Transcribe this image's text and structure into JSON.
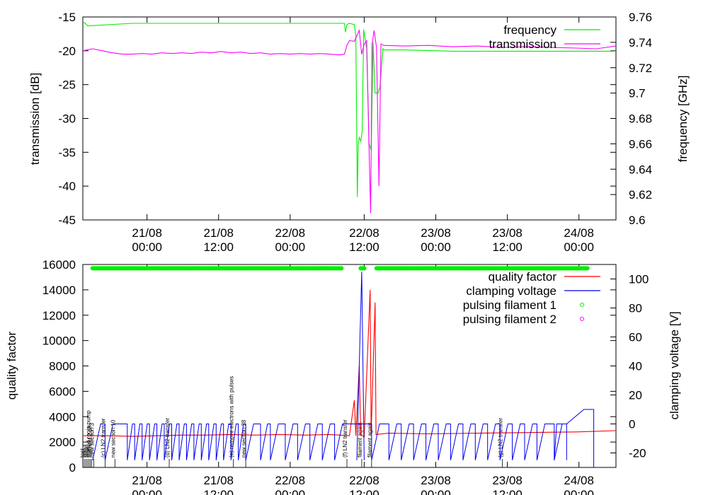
{
  "chart_data": [
    {
      "type": "line",
      "title": "",
      "ylabel": "transmission [dB]",
      "y2label": "frequency [GHz]",
      "ylim": [
        -45,
        -15
      ],
      "y2lim": [
        9.6,
        9.76
      ],
      "yticks": [
        "-15",
        "-20",
        "-25",
        "-30",
        "-35",
        "-40",
        "-45"
      ],
      "y2ticks": [
        "9.76",
        "9.74",
        "9.72",
        "9.7",
        "9.68",
        "9.66",
        "9.64",
        "9.62",
        "9.6"
      ],
      "xlim_hours": [
        0,
        108
      ],
      "xticks": [
        {
          "hour": 13,
          "date": "21/08",
          "time": "00:00"
        },
        {
          "hour": 27.5,
          "date": "21/08",
          "time": "12:00"
        },
        {
          "hour": 42,
          "date": "22/08",
          "time": "00:00"
        },
        {
          "hour": 57,
          "date": "22/08",
          "time": "12:00"
        },
        {
          "hour": 71.5,
          "date": "23/08",
          "time": "00:00"
        },
        {
          "hour": 86,
          "date": "23/08",
          "time": "12:00"
        },
        {
          "hour": 100.5,
          "date": "24/08",
          "time": "00:00"
        }
      ],
      "legend": "top-right",
      "series": [
        {
          "name": "frequency",
          "color": "#00ee00",
          "axis": "y2",
          "points": [
            [
              0,
              9.756
            ],
            [
              0.5,
              9.755
            ],
            [
              1,
              9.753
            ],
            [
              10,
              9.755
            ],
            [
              30,
              9.755
            ],
            [
              50,
              9.755
            ],
            [
              53,
              9.755
            ],
            [
              53.2,
              9.748
            ],
            [
              53.5,
              9.754
            ],
            [
              54,
              9.755
            ],
            [
              55,
              9.754
            ],
            [
              55.3,
              9.745
            ],
            [
              55.6,
              9.618
            ],
            [
              55.8,
              9.66
            ],
            [
              56,
              9.665
            ],
            [
              56.3,
              9.662
            ],
            [
              56.6,
              9.67
            ],
            [
              56.9,
              9.75
            ],
            [
              57.5,
              9.735
            ],
            [
              58,
              9.66
            ],
            [
              58.4,
              9.655
            ],
            [
              58.8,
              9.74
            ],
            [
              59.2,
              9.7
            ],
            [
              59.8,
              9.7
            ],
            [
              60.2,
              9.705
            ],
            [
              60.8,
              9.735
            ],
            [
              61,
              9.734
            ],
            [
              65,
              9.734
            ],
            [
              75,
              9.733
            ],
            [
              85,
              9.733
            ],
            [
              95,
              9.733
            ],
            [
              108,
              9.733
            ]
          ]
        },
        {
          "name": "transmission",
          "color": "#ff00ff",
          "axis": "y",
          "points": [
            [
              0,
              -20
            ],
            [
              2,
              -19.7
            ],
            [
              4,
              -20
            ],
            [
              6,
              -20.3
            ],
            [
              8,
              -20.5
            ],
            [
              10,
              -20.5
            ],
            [
              12,
              -20.4
            ],
            [
              14,
              -20.5
            ],
            [
              16,
              -20.3
            ],
            [
              18,
              -20.4
            ],
            [
              20,
              -20.3
            ],
            [
              22,
              -20.4
            ],
            [
              24,
              -20.2
            ],
            [
              26,
              -20.3
            ],
            [
              28,
              -20.1
            ],
            [
              30,
              -20.3
            ],
            [
              32,
              -20.2
            ],
            [
              34,
              -20.4
            ],
            [
              36,
              -20.3
            ],
            [
              38,
              -20.5
            ],
            [
              40,
              -20.4
            ],
            [
              42,
              -20.5
            ],
            [
              44,
              -20.4
            ],
            [
              46,
              -20.5
            ],
            [
              48,
              -20.4
            ],
            [
              50,
              -20.5
            ],
            [
              52,
              -20.6
            ],
            [
              53,
              -20.5
            ],
            [
              53.5,
              -19.2
            ],
            [
              54,
              -18.5
            ],
            [
              55,
              -18.6
            ],
            [
              56,
              -17
            ],
            [
              56.5,
              -20.5
            ],
            [
              57,
              -19
            ],
            [
              57.5,
              -18.5
            ],
            [
              58,
              -35
            ],
            [
              58.3,
              -44
            ],
            [
              58.6,
              -19
            ],
            [
              59,
              -17
            ],
            [
              59.5,
              -19.5
            ],
            [
              60,
              -40
            ],
            [
              60.4,
              -19
            ],
            [
              61,
              -19.2
            ],
            [
              65,
              -19.3
            ],
            [
              70,
              -19.2
            ],
            [
              75,
              -19.4
            ],
            [
              80,
              -19.3
            ],
            [
              85,
              -19.5
            ],
            [
              90,
              -19.4
            ],
            [
              95,
              -19.5
            ],
            [
              100,
              -19.6
            ],
            [
              104,
              -19.7
            ],
            [
              108,
              -19.3
            ]
          ]
        }
      ]
    },
    {
      "type": "line",
      "title": "",
      "ylabel": "quality factor",
      "y2label": "clamping voltage [V]",
      "ylim": [
        0,
        16000
      ],
      "y2lim": [
        -30,
        110
      ],
      "yticks": [
        "16000",
        "14000",
        "12000",
        "10000",
        "8000",
        "6000",
        "4000",
        "2000",
        "0"
      ],
      "y2ticks": [
        "100",
        "80",
        "60",
        "40",
        "20",
        "0",
        "-20"
      ],
      "xlim_hours": [
        0,
        108
      ],
      "xticks": [
        {
          "hour": 13,
          "date": "21/08",
          "time": "00:00"
        },
        {
          "hour": 27.5,
          "date": "21/08",
          "time": "12:00"
        },
        {
          "hour": 42,
          "date": "22/08",
          "time": "00:00"
        },
        {
          "hour": 57,
          "date": "22/08",
          "time": "12:00"
        },
        {
          "hour": 71.5,
          "date": "23/08",
          "time": "00:00"
        },
        {
          "hour": 86,
          "date": "23/08",
          "time": "12:00"
        },
        {
          "hour": 100.5,
          "date": "24/08",
          "time": "00:00"
        }
      ],
      "legend": "top-right",
      "series": [
        {
          "name": "quality factor",
          "color": "#ff0000",
          "axis": "y",
          "points": [
            [
              0,
              2500
            ],
            [
              5,
              2500
            ],
            [
              10,
              2450
            ],
            [
              15,
              2500
            ],
            [
              20,
              2550
            ],
            [
              25,
              2550
            ],
            [
              30,
              2600
            ],
            [
              35,
              2550
            ],
            [
              40,
              2600
            ],
            [
              45,
              2550
            ],
            [
              50,
              2600
            ],
            [
              54,
              2500
            ],
            [
              55,
              5300
            ],
            [
              55.3,
              2500
            ],
            [
              56,
              8000
            ],
            [
              56.3,
              2600
            ],
            [
              57,
              2400
            ],
            [
              58.2,
              14000
            ],
            [
              58.4,
              2600
            ],
            [
              59.2,
              13000
            ],
            [
              59.4,
              2600
            ],
            [
              62,
              2700
            ],
            [
              70,
              2650
            ],
            [
              80,
              2700
            ],
            [
              90,
              2750
            ],
            [
              100,
              2800
            ],
            [
              108,
              2900
            ]
          ]
        },
        {
          "name": "clamping voltage",
          "color": "#0000ee",
          "axis": "y2",
          "shape": "sawtooth",
          "baseline": -25,
          "peak": 0,
          "ramps_start_hours": [
            2,
            4.5,
            9,
            10.5,
            12,
            13.5,
            15,
            16.5,
            18,
            19.5,
            21,
            22.5,
            24,
            25.5,
            27,
            28.5,
            30,
            31.5,
            33,
            36,
            38,
            41,
            43.5,
            46,
            48.5,
            51,
            58.5,
            62,
            64.5,
            67,
            69.5,
            72,
            74.5,
            77,
            79.5,
            82,
            84.5,
            87,
            89.5,
            92,
            95.5
          ],
          "final_ramp": [
            [
              95.5,
              -25
            ],
            [
              96,
              0
            ],
            [
              98,
              0
            ],
            [
              101.5,
              10
            ],
            [
              103.5,
              10
            ],
            [
              103.5,
              -30
            ]
          ],
          "spike": [
            [
              55.5,
              -25
            ],
            [
              56,
              40
            ],
            [
              56.5,
              105
            ],
            [
              57,
              -25
            ]
          ]
        },
        {
          "name": "pulsing filament 1",
          "color": "#00ee00",
          "axis": "y",
          "marker": "circle",
          "level": 15700,
          "segments": [
            [
              2,
              52.5
            ],
            [
              56.3,
              57.3
            ],
            [
              59.5,
              102.5
            ]
          ]
        },
        {
          "name": "pulsing filament 2",
          "color": "#ff00ff",
          "axis": "y",
          "marker": "circle",
          "level": 15700,
          "segments": []
        }
      ],
      "events": [
        {
          "hour": 0.3,
          "label": "test"
        },
        {
          "hour": 0.6,
          "label": "test.."
        },
        {
          "hour": 0.9,
          "label": "small"
        },
        {
          "hour": 1.2,
          "label": "new"
        },
        {
          "hour": 1.5,
          "label": "started roots pump"
        },
        {
          "hour": 1.8,
          "label": "filament 2 off"
        },
        {
          "hour": 2.2,
          "label": "new section 3"
        },
        {
          "hour": 4.5,
          "label": "(c) LN2 transfer"
        },
        {
          "hour": 6.5,
          "label": "new section 10"
        },
        {
          "hour": 17.5,
          "label": "(d) LN2 transfer"
        },
        {
          "hour": 30.5,
          "label": "(e) remove electrons with pulses"
        },
        {
          "hour": 33,
          "label": "new section 28"
        },
        {
          "hour": 53.5,
          "label": "(f) LN2 transfer"
        },
        {
          "hour": 56.5,
          "label": "filament again"
        },
        {
          "hour": 58.5,
          "label": "filament again"
        },
        {
          "hour": 85,
          "label": "(g) LN2 transfer"
        }
      ]
    }
  ]
}
